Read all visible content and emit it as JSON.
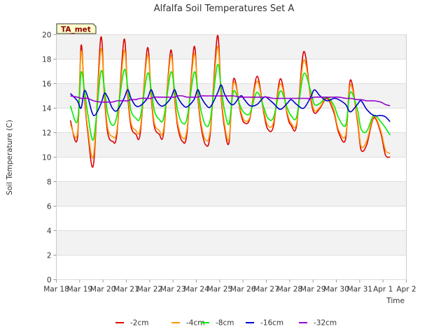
{
  "chart_data": {
    "type": "line",
    "title": "Alfalfa Soil Temperatures Set A",
    "xlabel": "Time",
    "ylabel": "Soil Temperature (C)",
    "badge": "TA_met",
    "ylim": [
      0,
      20
    ],
    "yticks": [
      0,
      2,
      4,
      6,
      8,
      10,
      12,
      14,
      16,
      18,
      20
    ],
    "xlim": [
      0,
      15
    ],
    "xticks": [
      0,
      1,
      2,
      3,
      4,
      5,
      6,
      7,
      8,
      9,
      10,
      11,
      12,
      13,
      14,
      15
    ],
    "xtick_labels": [
      "Mar 18",
      "Mar 19",
      "Mar 20",
      "Mar 21",
      "Mar 22",
      "Mar 23",
      "Mar 24",
      "Mar 25",
      "Mar 26",
      "Mar 27",
      "Mar 28",
      "Mar 29",
      "Mar 30",
      "Mar 31",
      "Apr 1",
      "Apr 2"
    ],
    "grid": true,
    "legend_position": "bottom",
    "x": [
      0.6,
      0.9,
      1.06,
      1.2,
      1.35,
      1.6,
      1.9,
      2.06,
      2.2,
      2.4,
      2.6,
      2.9,
      3.06,
      3.2,
      3.4,
      3.6,
      3.9,
      4.06,
      4.2,
      4.4,
      4.6,
      4.9,
      5.06,
      5.2,
      5.4,
      5.6,
      5.9,
      6.06,
      6.2,
      6.4,
      6.6,
      6.9,
      7.06,
      7.2,
      7.4,
      7.6,
      7.9,
      8.06,
      8.3,
      8.6,
      8.9,
      9.06,
      9.3,
      9.6,
      9.9,
      10.06,
      10.3,
      10.6,
      10.9,
      11.06,
      11.3,
      11.6,
      11.9,
      12.1,
      12.4,
      12.6,
      12.9,
      13.06,
      13.3,
      13.6,
      13.9,
      14.1,
      14.3
    ],
    "series": [
      {
        "name": "-2cm",
        "color": "#dd0000",
        "values": [
          13.0,
          11.5,
          19.1,
          15.0,
          12.0,
          9.5,
          19.7,
          15.0,
          12.0,
          11.3,
          12.0,
          19.6,
          15.0,
          12.5,
          11.9,
          12.0,
          18.9,
          15.0,
          12.5,
          11.9,
          12.0,
          18.7,
          15.0,
          12.5,
          11.3,
          12.0,
          19.0,
          15.0,
          12.5,
          11.0,
          12.0,
          19.9,
          15.0,
          12.5,
          11.2,
          16.4,
          13.6,
          12.8,
          13.2,
          16.6,
          13.5,
          12.3,
          12.5,
          16.4,
          13.4,
          12.6,
          12.6,
          18.6,
          14.8,
          13.6,
          14.0,
          14.8,
          13.6,
          12.0,
          11.5,
          16.3,
          13.0,
          10.6,
          11.0,
          13.2,
          12.0,
          10.2,
          10.0
        ]
      },
      {
        "name": "-4cm",
        "color": "#ff9900",
        "values": [
          12.7,
          11.9,
          18.6,
          15.2,
          12.3,
          10.2,
          18.7,
          15.3,
          12.4,
          11.7,
          12.3,
          18.7,
          15.3,
          12.8,
          12.2,
          12.4,
          18.3,
          15.2,
          12.8,
          12.2,
          12.3,
          18.2,
          15.2,
          12.8,
          11.6,
          12.3,
          18.4,
          15.2,
          12.8,
          11.4,
          12.3,
          19.0,
          15.2,
          12.8,
          11.5,
          16.1,
          13.8,
          13.0,
          13.3,
          16.2,
          13.7,
          12.6,
          12.8,
          16.0,
          13.6,
          12.8,
          12.8,
          17.9,
          15.0,
          13.8,
          14.1,
          14.9,
          13.8,
          12.2,
          11.8,
          15.9,
          13.2,
          10.9,
          11.3,
          13.3,
          12.2,
          10.6,
          10.3
        ]
      },
      {
        "name": "-8cm",
        "color": "#00ee00",
        "values": [
          14.2,
          12.9,
          16.9,
          15.5,
          13.5,
          11.5,
          16.9,
          15.6,
          13.6,
          12.6,
          13.4,
          17.1,
          15.7,
          13.8,
          13.2,
          13.3,
          16.8,
          15.6,
          13.8,
          13.1,
          13.2,
          16.9,
          15.6,
          13.8,
          12.8,
          13.2,
          16.9,
          15.5,
          13.8,
          12.6,
          13.1,
          17.5,
          15.7,
          13.9,
          12.7,
          15.4,
          14.1,
          13.6,
          13.6,
          15.3,
          14.0,
          13.2,
          13.2,
          15.4,
          14.0,
          13.4,
          13.3,
          16.8,
          15.4,
          14.3,
          14.4,
          14.9,
          14.2,
          13.2,
          12.6,
          15.3,
          13.9,
          12.3,
          12.1,
          13.4,
          12.9,
          12.4,
          11.8
        ]
      },
      {
        "name": "-16cm",
        "color": "#0000cc",
        "values": [
          15.2,
          14.6,
          14.0,
          15.4,
          14.9,
          13.4,
          14.3,
          15.2,
          14.9,
          14.0,
          13.8,
          14.8,
          15.5,
          14.8,
          14.2,
          14.2,
          14.8,
          15.5,
          14.9,
          14.3,
          14.2,
          14.8,
          15.5,
          14.9,
          14.3,
          14.1,
          14.7,
          15.5,
          14.9,
          14.3,
          14.1,
          15.2,
          15.9,
          15.2,
          14.5,
          14.3,
          15.0,
          14.7,
          14.2,
          14.3,
          14.9,
          14.8,
          14.4,
          13.9,
          14.4,
          14.7,
          14.3,
          14.0,
          14.9,
          15.5,
          15.0,
          14.6,
          14.8,
          14.7,
          14.3,
          13.7,
          14.3,
          14.6,
          13.9,
          13.4,
          13.4,
          13.3,
          12.9
        ]
      },
      {
        "name": "-32cm",
        "color": "#9900cc",
        "values": [
          15.0,
          14.9,
          14.8,
          14.8,
          14.8,
          14.6,
          14.5,
          14.5,
          14.5,
          14.5,
          14.6,
          14.6,
          14.6,
          14.7,
          14.7,
          14.8,
          14.8,
          14.8,
          14.9,
          14.9,
          14.9,
          14.9,
          14.9,
          15.0,
          15.0,
          14.9,
          14.9,
          14.9,
          15.0,
          15.0,
          15.0,
          15.0,
          15.0,
          15.0,
          15.0,
          15.0,
          14.9,
          14.9,
          14.9,
          14.9,
          14.9,
          14.9,
          14.8,
          14.8,
          14.8,
          14.8,
          14.8,
          14.8,
          14.8,
          14.9,
          14.9,
          14.9,
          14.9,
          14.9,
          14.8,
          14.8,
          14.7,
          14.7,
          14.6,
          14.6,
          14.5,
          14.3,
          14.2
        ]
      }
    ]
  }
}
